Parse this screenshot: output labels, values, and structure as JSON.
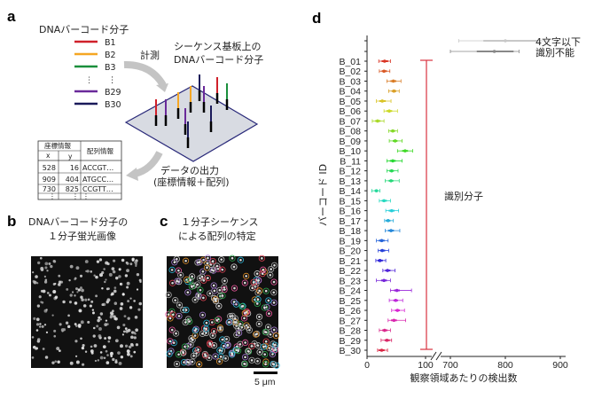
{
  "panel_a": {
    "letter": "a",
    "legend_title": "DNAバーコード分子",
    "legend": [
      {
        "label": "B1",
        "color": "#d0202a"
      },
      {
        "label": "B2",
        "color": "#f5a623"
      },
      {
        "label": "B3",
        "color": "#1a8f3c"
      },
      {
        "label": "⋮",
        "color": ""
      },
      {
        "label": "B29",
        "color": "#6a2a9a"
      },
      {
        "label": "B30",
        "color": "#1a1a5a"
      }
    ],
    "measure_label": "計測",
    "substrate_title_1": "シーケンス基板上の",
    "substrate_title_2": "DNAバーコード分子",
    "output_label_1": "データの出力",
    "output_label_2": "(座標情報＋配列)",
    "table": {
      "coord_header": "座標情報",
      "seq_header": "配列情報",
      "x_header": "x",
      "y_header": "y",
      "rows": [
        [
          "528",
          "16",
          "ACCGT…"
        ],
        [
          "909",
          "404",
          "ATGCC…"
        ],
        [
          "730",
          "825",
          "CCGTT…"
        ],
        [
          "⋮",
          "⋮",
          "⋮"
        ]
      ]
    }
  },
  "panel_b": {
    "letter": "b",
    "title_1": "DNAバーコード分子の",
    "title_2": "１分子蛍光画像"
  },
  "panel_c": {
    "letter": "c",
    "title_1": "１分子シーケンス",
    "title_2": "による配列の特定",
    "scale_bar": "5 μm"
  },
  "chart_data": {
    "type": "scatter",
    "panel_letter": "d",
    "xlabel": "観察領域あたりの検出数",
    "ylabel": "バーコード ID",
    "x_axis_break": [
      100,
      700
    ],
    "xlim_lower": [
      0,
      100
    ],
    "xlim_upper": [
      700,
      900
    ],
    "x_ticks": [
      "0",
      "100",
      "700",
      "800",
      "900"
    ],
    "categories": [
      "B_01",
      "B_02",
      "B_03",
      "B_04",
      "B_05",
      "B_06",
      "B_07",
      "B_08",
      "B_09",
      "B_10",
      "B_11",
      "B_12",
      "B_13",
      "B_14",
      "B_15",
      "B_16",
      "B_17",
      "B_18",
      "B_19",
      "B_20",
      "B_21",
      "B_22",
      "B_23",
      "B_24",
      "B_25",
      "B_26",
      "B_27",
      "B_28",
      "B_29",
      "B_30"
    ],
    "median": [
      30,
      29,
      45,
      46,
      26,
      38,
      18,
      44,
      48,
      65,
      44,
      42,
      41,
      16,
      29,
      42,
      36,
      41,
      25,
      26,
      22,
      35,
      29,
      51,
      49,
      52,
      46,
      30,
      34,
      25
    ],
    "q1": [
      25,
      25,
      40,
      42,
      21,
      33,
      14,
      40,
      44,
      60,
      39,
      38,
      37,
      13,
      25,
      37,
      32,
      36,
      20,
      22,
      18,
      31,
      24,
      46,
      45,
      48,
      41,
      26,
      30,
      20
    ],
    "q3": [
      36,
      34,
      50,
      50,
      32,
      43,
      23,
      48,
      52,
      70,
      49,
      46,
      45,
      19,
      34,
      47,
      40,
      46,
      30,
      31,
      27,
      40,
      34,
      56,
      53,
      56,
      51,
      35,
      39,
      30
    ],
    "min": [
      20,
      21,
      34,
      37,
      16,
      29,
      9,
      37,
      38,
      52,
      34,
      34,
      31,
      8,
      21,
      32,
      30,
      31,
      16,
      19,
      15,
      27,
      16,
      40,
      38,
      42,
      36,
      21,
      24,
      18
    ],
    "max": [
      40,
      39,
      58,
      55,
      41,
      52,
      29,
      52,
      60,
      78,
      60,
      53,
      55,
      22,
      40,
      54,
      45,
      56,
      36,
      37,
      32,
      48,
      40,
      76,
      61,
      64,
      66,
      40,
      42,
      35
    ],
    "extra_rows": [
      {
        "label": "4文字以下",
        "median": 800,
        "q1": 760,
        "q3": 860,
        "min": 715,
        "max": 880,
        "color": "#c8c8c8"
      },
      {
        "label": "識別不能",
        "median": 780,
        "q1": 748,
        "q3": 815,
        "min": 700,
        "max": 825,
        "color": "#888888"
      }
    ],
    "bracket_label": "識別分子",
    "bracket_color": "#d9323f"
  }
}
